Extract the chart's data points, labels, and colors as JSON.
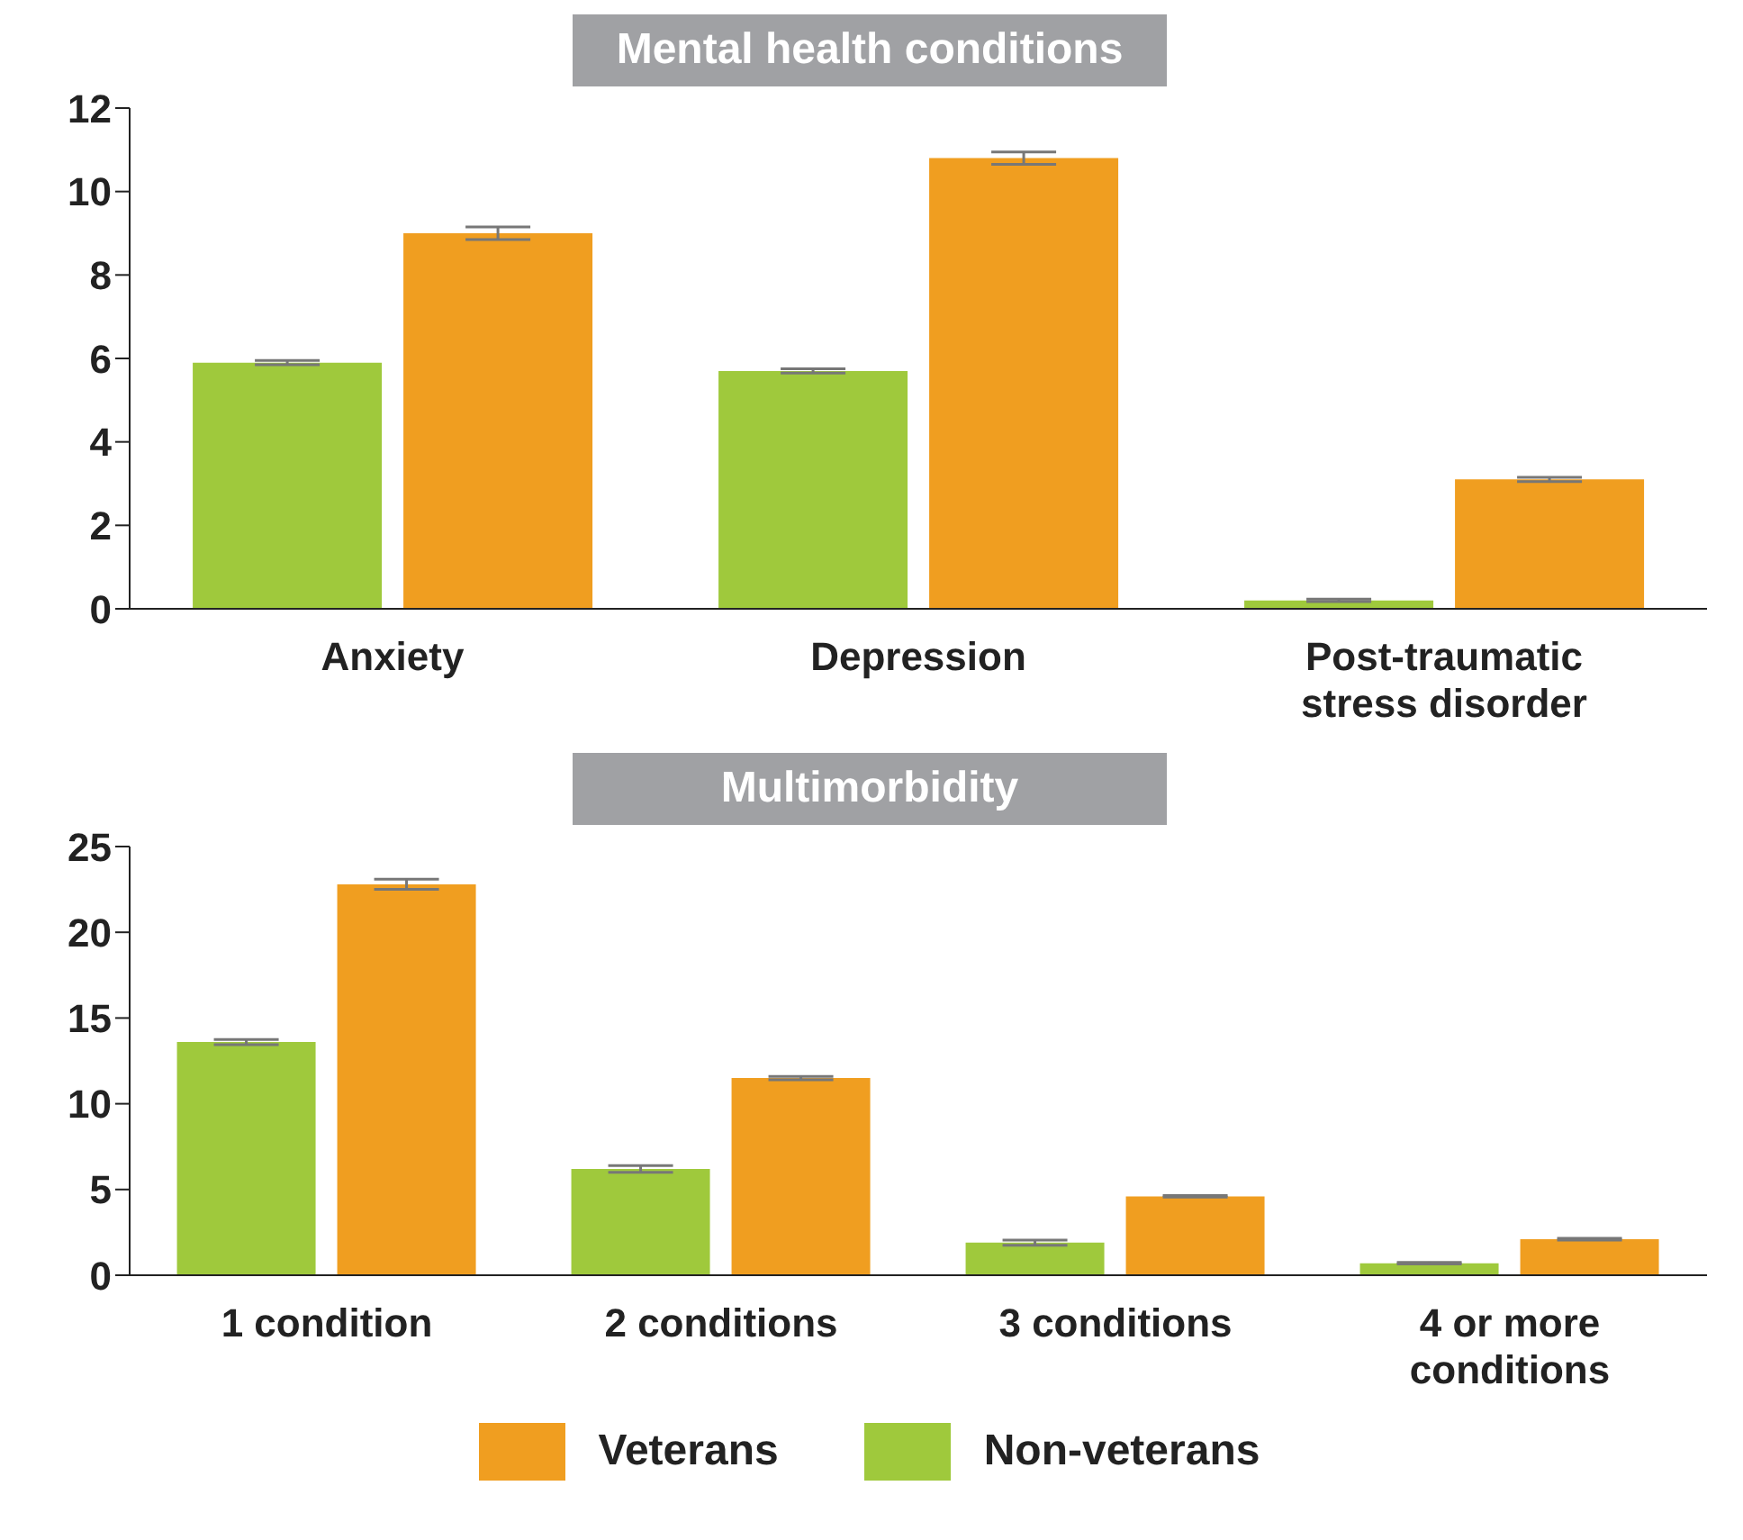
{
  "chart_data": [
    {
      "type": "bar",
      "title": "Mental health conditions",
      "categories": [
        "Anxiety",
        "Depression",
        "Post-traumatic stress disorder"
      ],
      "series": [
        {
          "color": "#9fc93c",
          "values": [
            5.9,
            5.7,
            0.2
          ],
          "errors": [
            0.05,
            0.05,
            0.03
          ]
        },
        {
          "color": "#f09e20",
          "values": [
            9.0,
            10.8,
            3.1
          ],
          "errors": [
            0.15,
            0.15,
            0.05
          ]
        }
      ],
      "ylim": [
        0,
        12
      ],
      "yticks": [
        0,
        2,
        4,
        6,
        8,
        10,
        12
      ],
      "grid": false,
      "legend": false
    },
    {
      "type": "bar",
      "title": "Multimorbidity",
      "categories": [
        "1 condition",
        "2 conditions",
        "3 conditions",
        "4 or more conditions"
      ],
      "series": [
        {
          "name": "Non-veterans",
          "color": "#9fc93c",
          "values": [
            13.6,
            6.2,
            1.9,
            0.7
          ],
          "errors": [
            0.15,
            0.2,
            0.15,
            0.05
          ]
        },
        {
          "name": "Veterans",
          "color": "#f09e20",
          "values": [
            22.8,
            11.5,
            4.6,
            2.1
          ],
          "errors": [
            0.3,
            0.1,
            0.05,
            0.05
          ]
        }
      ],
      "ylim": [
        0,
        25
      ],
      "yticks": [
        0,
        5,
        10,
        15,
        20,
        25
      ],
      "grid": false,
      "legend": "bottom"
    }
  ]
}
